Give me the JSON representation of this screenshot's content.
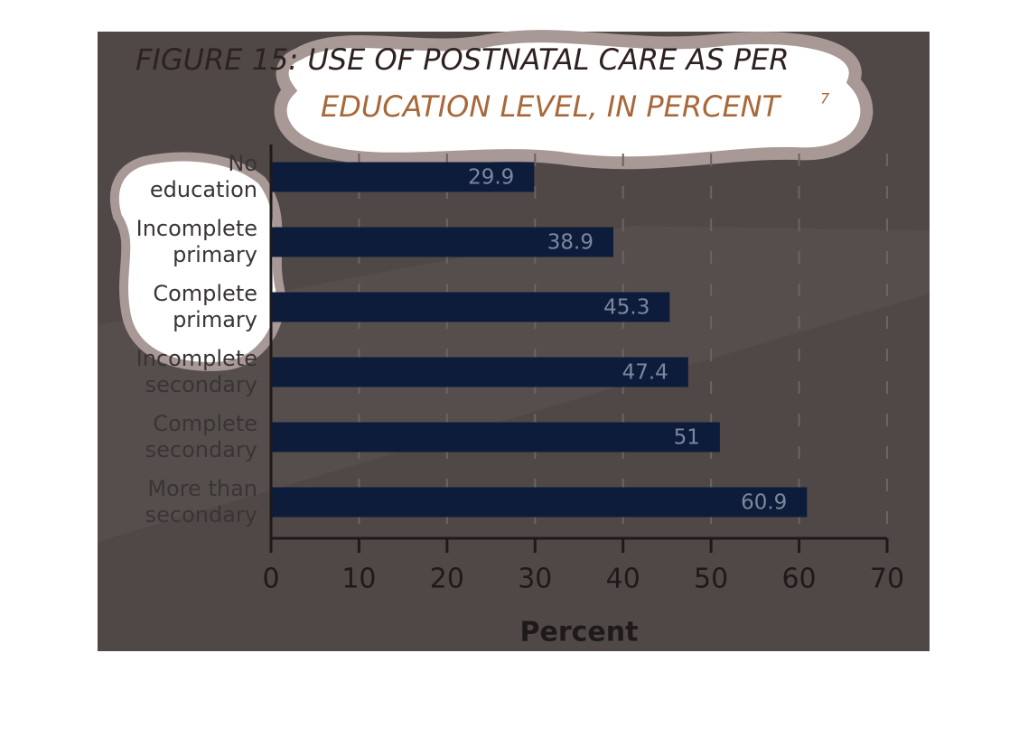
{
  "chart_data": {
    "type": "bar",
    "orientation": "horizontal",
    "title": [
      "FIGURE 15: USE OF POSTNATAL CARE AS PER",
      "EDUCATION LEVEL, IN PERCENT"
    ],
    "title_footnote": "7",
    "x_label": "Percent",
    "categories": [
      [
        "No",
        "education"
      ],
      [
        "Incomplete",
        "primary"
      ],
      [
        "Complete",
        "primary"
      ],
      [
        "Incomplete",
        "secondary"
      ],
      [
        "Complete",
        "secondary"
      ],
      [
        "More than",
        "secondary"
      ]
    ],
    "values": [
      29.9,
      38.9,
      45.3,
      47.4,
      51,
      60.9
    ],
    "color": "#0e1c3b",
    "xlim": [
      0,
      70
    ],
    "xticks": [
      0,
      10,
      20,
      30,
      40,
      50,
      60,
      70
    ],
    "grid": true
  }
}
